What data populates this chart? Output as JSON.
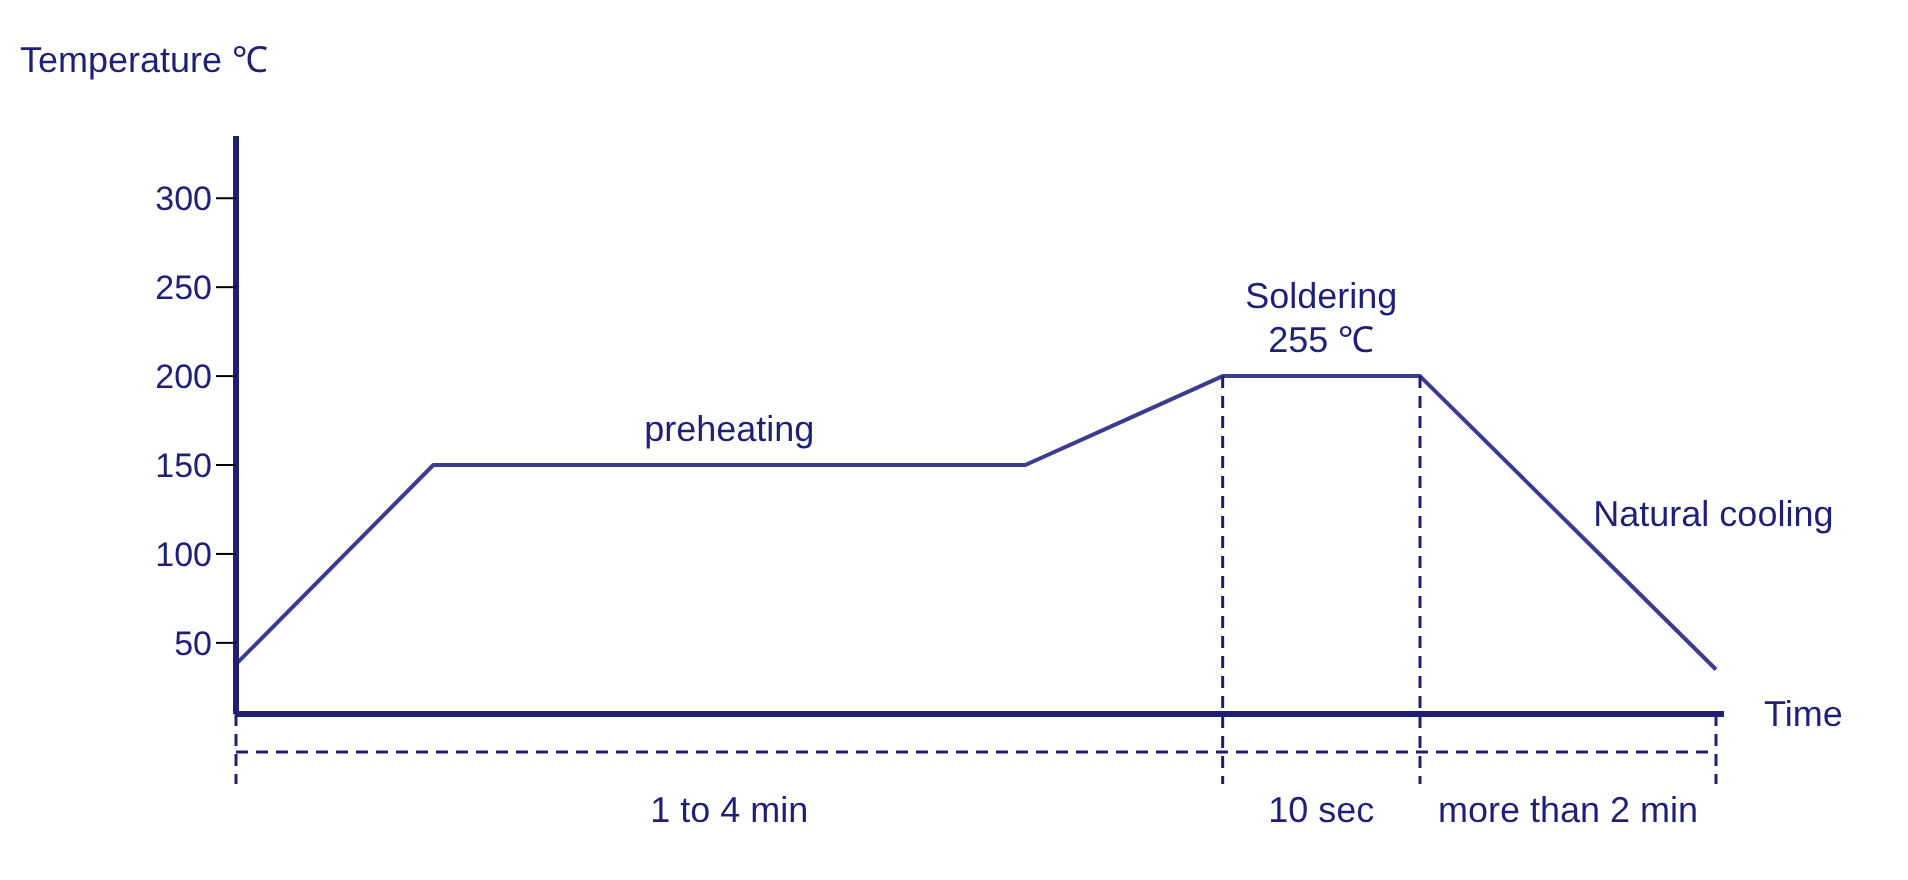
{
  "chart_data": {
    "type": "line",
    "xlabel": "Time",
    "ylabel": "Temperature ℃",
    "categories": [
      null,
      null,
      null,
      null,
      null,
      null,
      null,
      null,
      null,
      null,
      null,
      null,
      null,
      null,
      null,
      null
    ],
    "series": [
      {
        "color": "#3b3b8f",
        "values": [
          38,
          94,
          150,
          150,
          150,
          150,
          150,
          150,
          150,
          175,
          200,
          200,
          200,
          145,
          90,
          35
        ]
      }
    ],
    "ylim": [
      10,
      335
    ],
    "yticks": [
      50,
      100,
      150,
      200,
      250,
      300
    ],
    "tick_labels": "y",
    "grid": false,
    "marker": "none",
    "line_style": "solid",
    "annotations": [
      "preheating",
      "Soldering\n255 ℃",
      "Natural cooling",
      "1 to 4 min",
      "10 sec",
      "more than 2 min"
    ]
  }
}
